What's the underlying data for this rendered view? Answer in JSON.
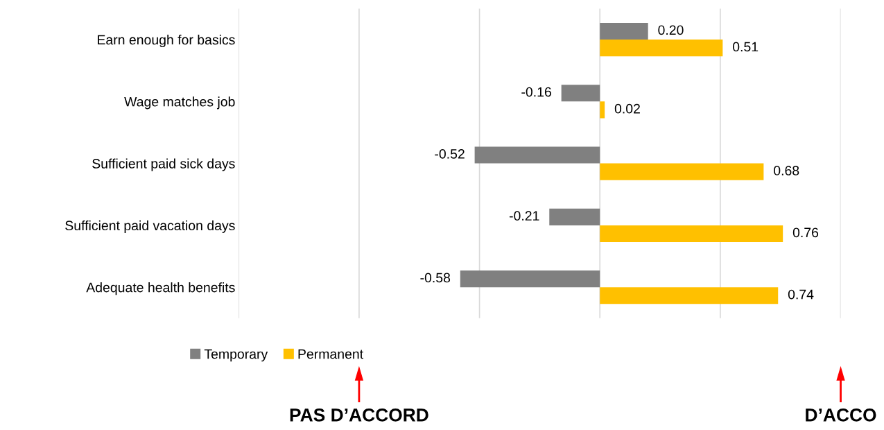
{
  "chart_data": {
    "type": "bar",
    "orientation": "horizontal",
    "categories": [
      "Earn enough for basics",
      "Wage matches job",
      "Sufficient paid sick days",
      "Sufficient paid vacation days",
      "Adequate health benefits"
    ],
    "series": [
      {
        "name": "Temporary",
        "color": "#808080",
        "values": [
          0.2,
          -0.16,
          -0.52,
          -0.21,
          -0.58
        ],
        "value_labels": [
          "0.20",
          "-0.16",
          "-0.52",
          "-0.21",
          "-0.58"
        ]
      },
      {
        "name": "Permanent",
        "color": "#ffc000",
        "values": [
          0.51,
          0.02,
          0.68,
          0.76,
          0.74
        ],
        "value_labels": [
          "0.51",
          "0.02",
          "0.68",
          "0.76",
          "0.74"
        ]
      }
    ],
    "xlim": [
      -1.5,
      1.0
    ],
    "xticks": [
      {
        "value": -1.5,
        "label": null
      },
      {
        "value": -1.0,
        "label": null
      },
      {
        "value": -0.5,
        "label": null
      },
      {
        "value": 0,
        "label": null
      },
      {
        "value": 0.5,
        "label": null
      },
      {
        "value": 1.0,
        "label": null
      }
    ],
    "tick_labels": "y",
    "grid": "x",
    "legend": "bottom left",
    "annotations": [
      "PAS D’ACCORD",
      "D’ACCO"
    ]
  }
}
